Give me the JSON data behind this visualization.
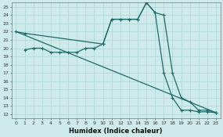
{
  "xlabel": "Humidex (Indice chaleur)",
  "background_color": "#ceeaea",
  "grid_color": "#b0d8d8",
  "line_color": "#1a6e6a",
  "x_ticks": [
    0,
    1,
    2,
    3,
    4,
    5,
    6,
    7,
    8,
    9,
    10,
    11,
    12,
    13,
    14,
    15,
    16,
    17,
    18,
    19,
    20,
    21,
    22,
    23
  ],
  "y_ticks": [
    12,
    13,
    14,
    15,
    16,
    17,
    18,
    19,
    20,
    21,
    22,
    23,
    24,
    25
  ],
  "xlim": [
    -0.5,
    23.5
  ],
  "ylim": [
    11.5,
    25.5
  ],
  "series": [
    {
      "x": [
        0,
        1,
        2,
        3,
        4,
        5,
        6,
        7,
        8,
        9,
        10,
        11,
        12,
        13,
        14,
        15,
        16,
        17,
        18,
        19,
        20,
        21,
        22,
        23
      ],
      "y": [
        22,
        21.8,
        null,
        null,
        null,
        null,
        null,
        null,
        null,
        null,
        20.5,
        23.5,
        23.5,
        23.5,
        23.5,
        25.5,
        24.3,
        null,
        null,
        null,
        null,
        null,
        null,
        null
      ]
    },
    {
      "x": [
        0,
        1,
        2,
        3,
        4,
        5,
        6,
        7,
        8,
        9,
        10,
        11,
        12,
        13,
        14,
        15,
        16,
        17,
        18,
        19,
        20,
        21,
        22,
        23
      ],
      "y": [
        null,
        null,
        20,
        20,
        19.5,
        19.5,
        19.5,
        19.5,
        20,
        20,
        20.5,
        null,
        null,
        null,
        null,
        null,
        null,
        17,
        14,
        null,
        null,
        null,
        null,
        null
      ]
    },
    {
      "x": [
        0,
        1,
        2,
        3,
        4,
        5,
        6,
        7,
        8,
        9,
        10,
        11,
        12,
        13,
        14,
        15,
        16,
        17,
        18,
        19,
        20,
        21,
        22,
        23
      ],
      "y": [
        22,
        21.5,
        21.0,
        20.5,
        20.0,
        19.5,
        19.0,
        18.5,
        18.0,
        17.5,
        17.0,
        16.5,
        16.0,
        15.5,
        15.0,
        14.5,
        14.0,
        13.5,
        13.2,
        12.8,
        12.5,
        12.3,
        12.3,
        12.2
      ]
    }
  ],
  "series_full": [
    {
      "x": [
        0,
        1,
        10,
        11,
        12,
        13,
        14,
        15,
        16,
        17,
        18,
        19,
        20,
        21,
        22,
        23
      ],
      "y": [
        22,
        21.8,
        20.5,
        23.5,
        23.5,
        23.5,
        23.5,
        25.5,
        24.3,
        24.0,
        17.0,
        14.0,
        13.5,
        12.5,
        12.5,
        12.2
      ]
    },
    {
      "x": [
        1,
        2,
        3,
        4,
        5,
        6,
        7,
        8,
        9,
        10,
        11,
        12,
        13,
        14,
        15,
        16,
        17,
        18,
        19,
        20,
        21,
        22,
        23
      ],
      "y": [
        19.8,
        20,
        20,
        19.5,
        19.5,
        19.5,
        19.5,
        20,
        20,
        20.5,
        23.5,
        23.5,
        23.5,
        23.5,
        25.5,
        24.3,
        17,
        14,
        12.5,
        12.5,
        12.3,
        12.3,
        12.2
      ]
    },
    {
      "x": [
        0,
        23
      ],
      "y": [
        22,
        12.2
      ]
    }
  ]
}
